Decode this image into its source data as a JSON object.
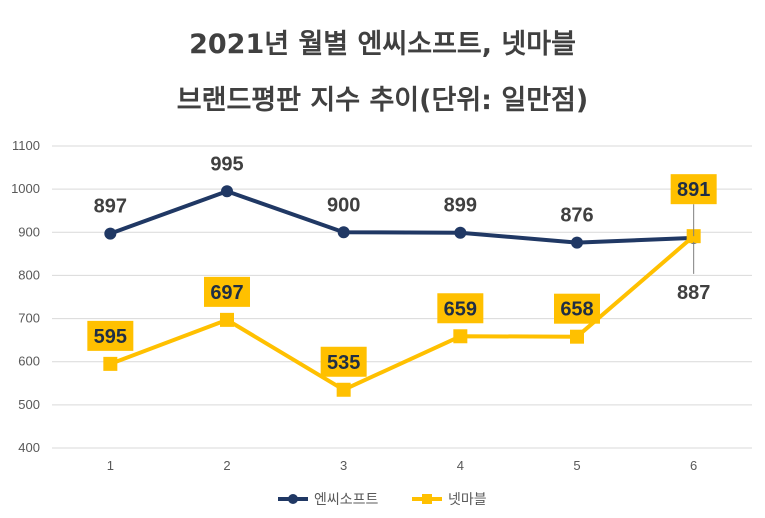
{
  "chart_data": {
    "type": "line",
    "title_line1": "2021년 월별 엔씨소프트, 넷마블",
    "title_line2": "브랜드평판 지수 추이(단위: 일만점)",
    "categories": [
      "1",
      "2",
      "3",
      "4",
      "5",
      "6"
    ],
    "ylim": [
      400,
      1100
    ],
    "yticks": [
      400,
      500,
      600,
      700,
      800,
      900,
      1000,
      1100
    ],
    "grid": true,
    "legend_position": "bottom",
    "series": [
      {
        "name": "엔씨소프트",
        "values": [
          897,
          995,
          900,
          899,
          876,
          887
        ],
        "color": "#203864",
        "marker": "circle"
      },
      {
        "name": "넷마블",
        "values": [
          595,
          697,
          535,
          659,
          658,
          891
        ],
        "color": "#FFC000",
        "marker": "square"
      }
    ]
  }
}
